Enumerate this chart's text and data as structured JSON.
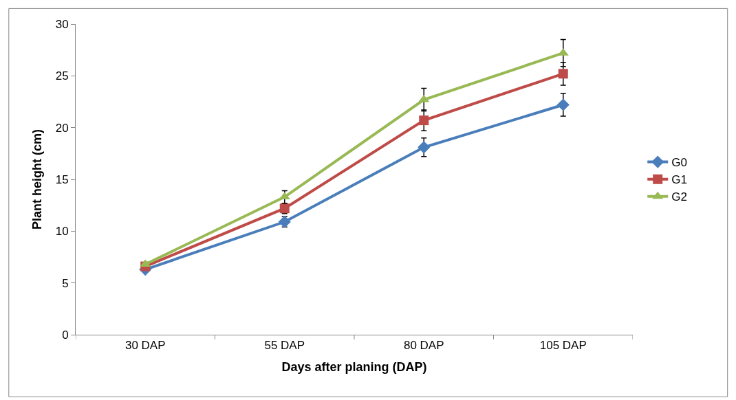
{
  "chart_data": {
    "type": "line",
    "xlabel": "Days after planing (DAP)",
    "ylabel": "Plant height (cm)",
    "categories": [
      "30 DAP",
      "55 DAP",
      "80 DAP",
      "105 DAP"
    ],
    "series": [
      {
        "name": "G0",
        "color": "#4a7ebb",
        "marker": "diamond",
        "values": [
          6.3,
          10.9,
          18.1,
          22.2
        ],
        "errors": [
          null,
          0.5,
          0.9,
          1.1
        ]
      },
      {
        "name": "G1",
        "color": "#be4b48",
        "marker": "square",
        "values": [
          6.6,
          12.2,
          20.7,
          25.2
        ],
        "errors": [
          null,
          0.5,
          1.0,
          1.1
        ]
      },
      {
        "name": "G2",
        "color": "#98b954",
        "marker": "triangle",
        "values": [
          6.8,
          13.3,
          22.7,
          27.2
        ],
        "errors": [
          null,
          0.6,
          1.1,
          1.3
        ]
      }
    ],
    "ylim": [
      0,
      30
    ],
    "yticks": [
      0,
      5,
      10,
      15,
      20,
      25,
      30
    ],
    "legend": "right",
    "line_style": "solid"
  }
}
